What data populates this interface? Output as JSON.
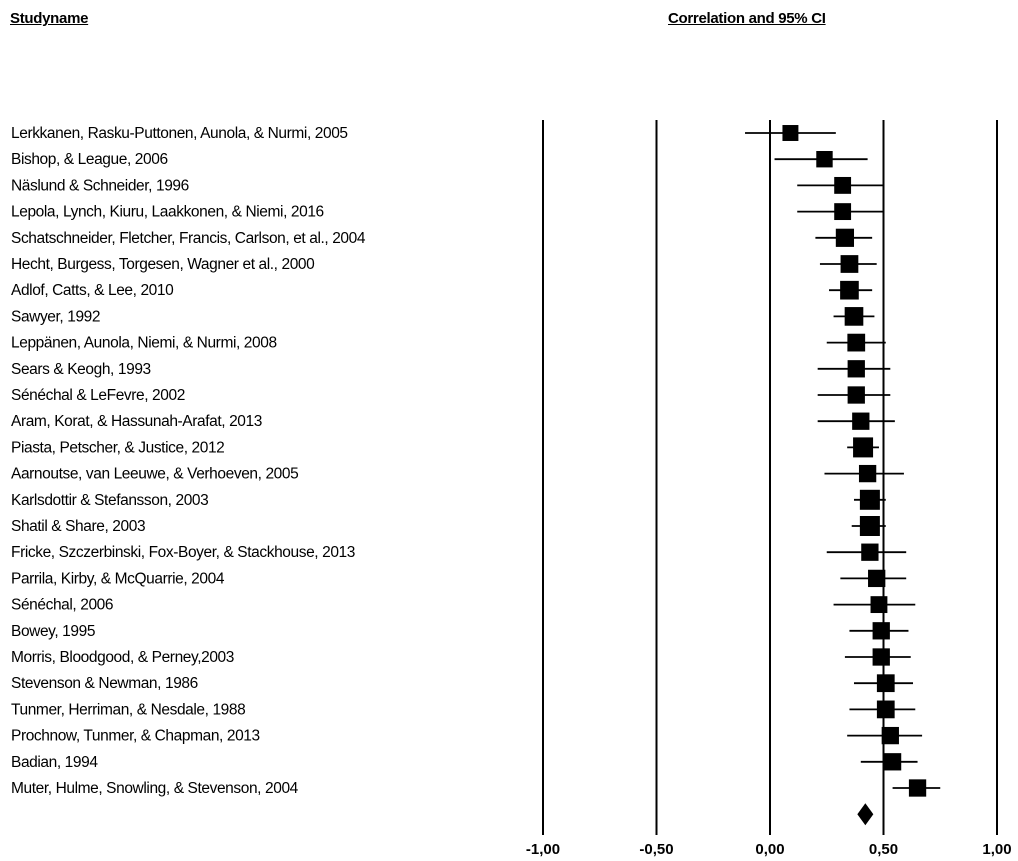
{
  "headers": {
    "study_name": "Studyname",
    "effect": "Correlation and 95% CI"
  },
  "chart_data": {
    "type": "forest",
    "xlim": [
      -1,
      1
    ],
    "ticks": [
      -1,
      -0.5,
      0,
      0.5,
      1
    ],
    "tick_labels": [
      "-1,00",
      "-0,50",
      "0,00",
      "0,50",
      "1,00"
    ],
    "studies": [
      {
        "name": "Lerkkanen, Rasku-Puttonen, Aunola, & Nurmi, 2005",
        "r": 0.09,
        "lower": -0.11,
        "upper": 0.29,
        "weight": 0.55
      },
      {
        "name": "Bishop, & League, 2006",
        "r": 0.24,
        "lower": 0.02,
        "upper": 0.43,
        "weight": 0.6
      },
      {
        "name": "Näslund & Schneider, 1996",
        "r": 0.32,
        "lower": 0.12,
        "upper": 0.5,
        "weight": 0.65
      },
      {
        "name": "Lepola, Lynch, Kiuru, Laakkonen, & Niemi, 2016",
        "r": 0.32,
        "lower": 0.12,
        "upper": 0.5,
        "weight": 0.65
      },
      {
        "name": "Schatschneider, Fletcher, Francis, Carlson, et al., 2004",
        "r": 0.33,
        "lower": 0.2,
        "upper": 0.45,
        "weight": 0.8
      },
      {
        "name": "Hecht, Burgess, Torgesen, Wagner et al., 2000",
        "r": 0.35,
        "lower": 0.22,
        "upper": 0.47,
        "weight": 0.75
      },
      {
        "name": "Adlof, Catts, & Lee, 2010",
        "r": 0.35,
        "lower": 0.26,
        "upper": 0.45,
        "weight": 0.85
      },
      {
        "name": "Sawyer, 1992",
        "r": 0.37,
        "lower": 0.28,
        "upper": 0.46,
        "weight": 0.85
      },
      {
        "name": "Leppänen, Aunola, Niemi, & Nurmi, 2008",
        "r": 0.38,
        "lower": 0.25,
        "upper": 0.51,
        "weight": 0.75
      },
      {
        "name": "Sears & Keogh, 1993",
        "r": 0.38,
        "lower": 0.21,
        "upper": 0.53,
        "weight": 0.7
      },
      {
        "name": "Sénéchal & LeFevre, 2002",
        "r": 0.38,
        "lower": 0.21,
        "upper": 0.53,
        "weight": 0.7
      },
      {
        "name": "Aram, Korat, & Hassunah-Arafat, 2013",
        "r": 0.4,
        "lower": 0.21,
        "upper": 0.55,
        "weight": 0.7
      },
      {
        "name": "Piasta, Petscher, & Justice, 2012",
        "r": 0.41,
        "lower": 0.34,
        "upper": 0.48,
        "weight": 1.0
      },
      {
        "name": "Aarnoutse, van Leeuwe, & Verhoeven, 2005",
        "r": 0.43,
        "lower": 0.24,
        "upper": 0.59,
        "weight": 0.7
      },
      {
        "name": "Karlsdottir & Stefansson, 2003",
        "r": 0.44,
        "lower": 0.37,
        "upper": 0.51,
        "weight": 1.0
      },
      {
        "name": "Shatil & Share, 2003",
        "r": 0.44,
        "lower": 0.36,
        "upper": 0.51,
        "weight": 1.0
      },
      {
        "name": "Fricke, Szczerbinski, Fox-Boyer, & Stackhouse, 2013",
        "r": 0.44,
        "lower": 0.25,
        "upper": 0.6,
        "weight": 0.7
      },
      {
        "name": "Parrila, Kirby, & McQuarrie, 2004",
        "r": 0.47,
        "lower": 0.31,
        "upper": 0.6,
        "weight": 0.7
      },
      {
        "name": "Sénéchal, 2006",
        "r": 0.48,
        "lower": 0.28,
        "upper": 0.64,
        "weight": 0.65
      },
      {
        "name": "Bowey, 1995",
        "r": 0.49,
        "lower": 0.35,
        "upper": 0.61,
        "weight": 0.7
      },
      {
        "name": "Morris, Bloodgood, & Perney,2003",
        "r": 0.49,
        "lower": 0.33,
        "upper": 0.62,
        "weight": 0.7
      },
      {
        "name": "Stevenson & Newman, 1986",
        "r": 0.51,
        "lower": 0.37,
        "upper": 0.63,
        "weight": 0.75
      },
      {
        "name": "Tunmer, Herriman, & Nesdale, 1988",
        "r": 0.51,
        "lower": 0.35,
        "upper": 0.64,
        "weight": 0.75
      },
      {
        "name": "Prochnow, Tunmer, & Chapman, 2013",
        "r": 0.53,
        "lower": 0.34,
        "upper": 0.67,
        "weight": 0.7
      },
      {
        "name": "Badian, 1994",
        "r": 0.54,
        "lower": 0.4,
        "upper": 0.65,
        "weight": 0.7
      },
      {
        "name": "Muter, Hulme,  Snowling, & Stevenson,  2004",
        "r": 0.65,
        "lower": 0.54,
        "upper": 0.75,
        "weight": 0.7
      }
    ],
    "summary": {
      "r": 0.42
    }
  }
}
